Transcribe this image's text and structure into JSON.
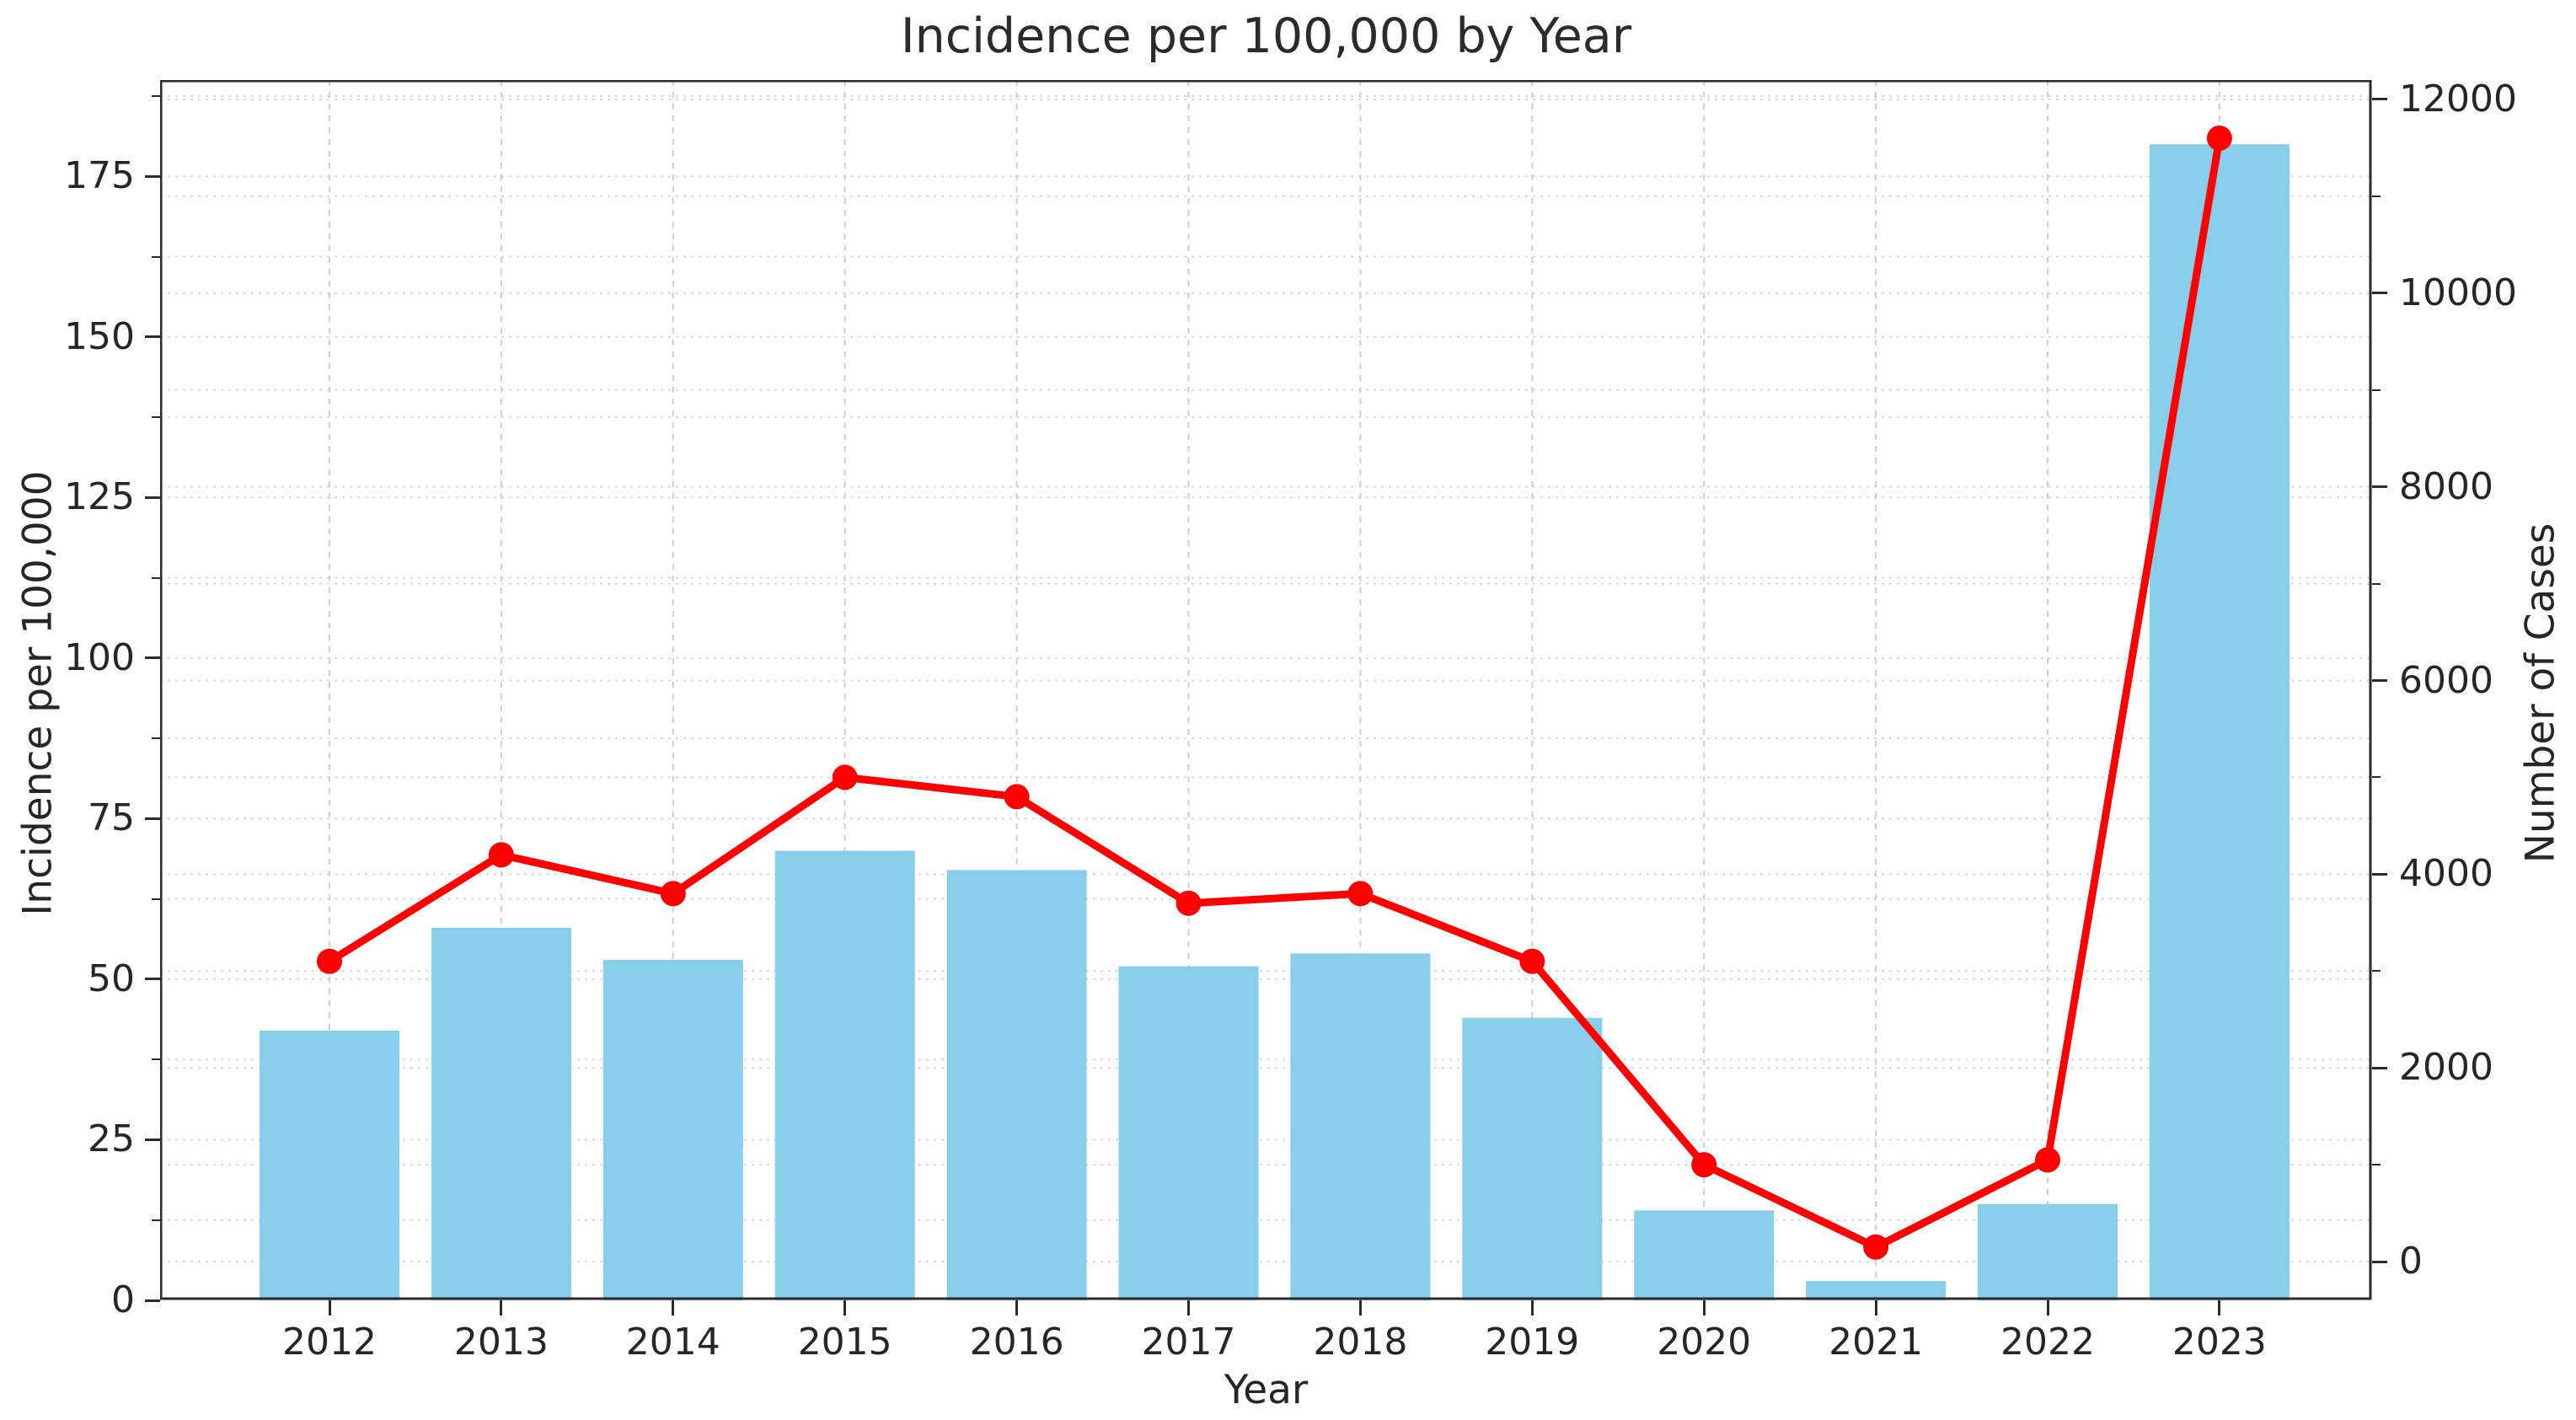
{
  "chart_data": {
    "type": "bar+line",
    "title": "Incidence per 100,000 by Year",
    "xlabel": "Year",
    "ylabel_left": "Incidence per 100,000",
    "ylabel_right": "Number of Cases",
    "categories": [
      "2012",
      "2013",
      "2014",
      "2015",
      "2016",
      "2017",
      "2018",
      "2019",
      "2020",
      "2021",
      "2022",
      "2023"
    ],
    "series": [
      {
        "name": "Incidence per 100,000",
        "type": "bar",
        "axis": "left",
        "color": "#87CEEB",
        "values": [
          42,
          58,
          53,
          70,
          67,
          52,
          54,
          44,
          14,
          3,
          15,
          180
        ]
      },
      {
        "name": "Number of Cases",
        "type": "line",
        "axis": "right",
        "color": "#FF0000",
        "values": [
          3100,
          4200,
          3800,
          5000,
          4800,
          3700,
          3800,
          3100,
          1000,
          150,
          1050,
          11600
        ]
      }
    ],
    "y_left_axis": {
      "ticks": [
        0,
        25,
        50,
        75,
        100,
        125,
        150,
        175
      ],
      "minor_step": 12.5,
      "range": [
        0,
        190
      ]
    },
    "y_right_axis": {
      "ticks": [
        0,
        2000,
        4000,
        6000,
        8000,
        10000,
        12000
      ],
      "minor_step": 1000,
      "range": [
        -400,
        12200
      ]
    },
    "grid": true,
    "legend_position": "none",
    "colors": {
      "bar": "#87CEEB",
      "line": "#FF0000",
      "grid": "#d9d9d9",
      "vgrid": "#cfcfcf",
      "spine": "#2b2b2b",
      "text": "#262626",
      "background": "#ffffff"
    }
  }
}
